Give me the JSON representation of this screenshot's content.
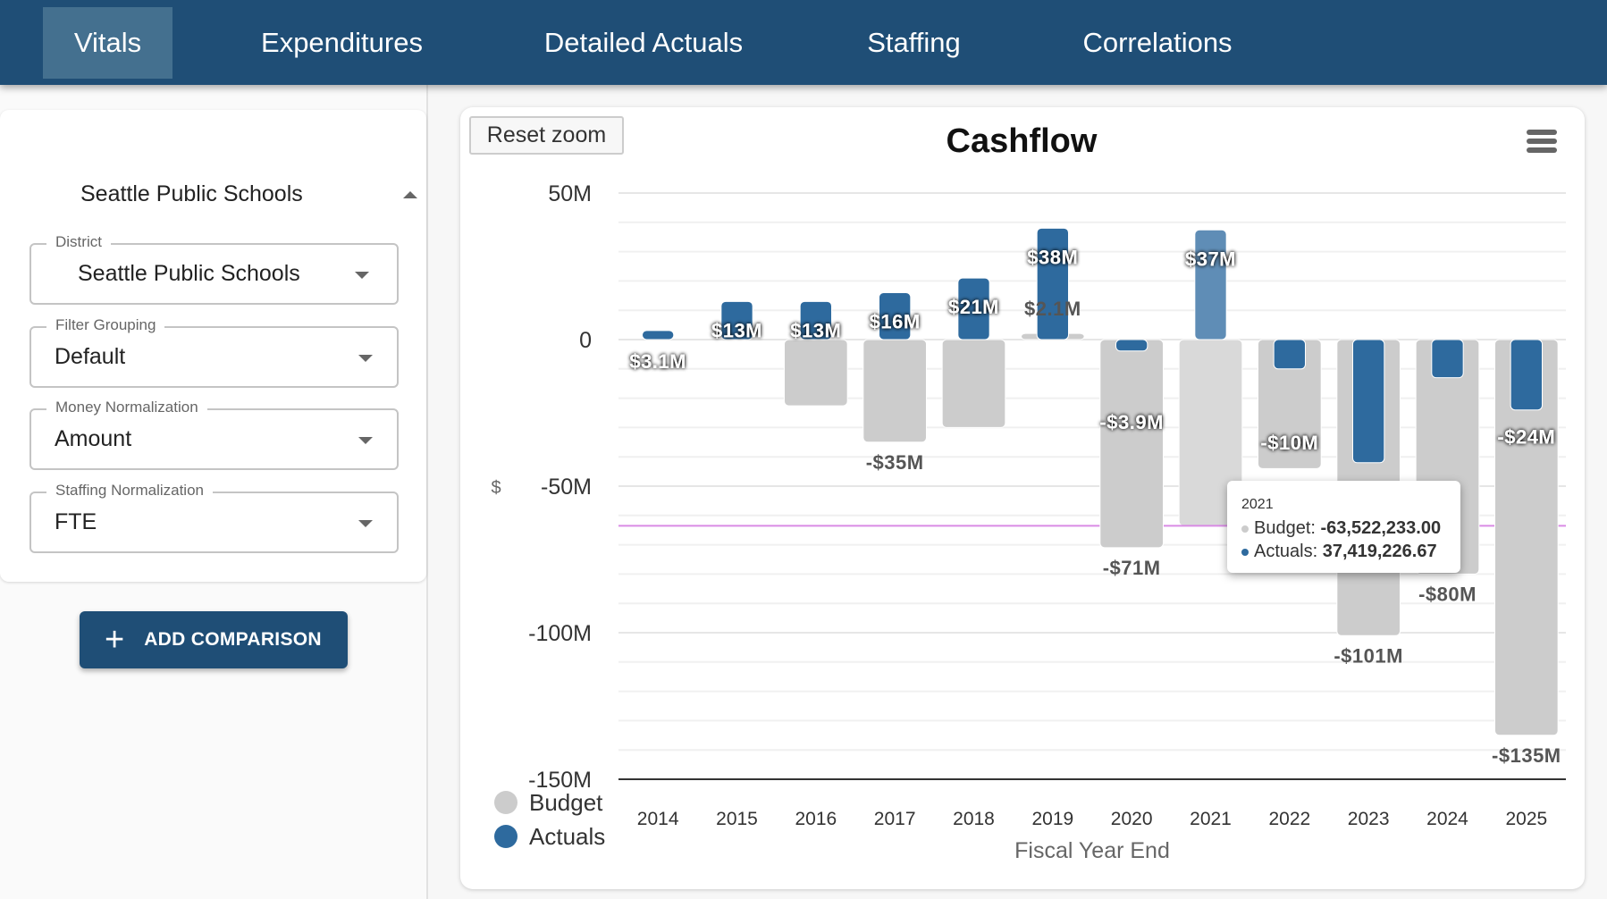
{
  "nav": {
    "tabs": [
      {
        "label": "Vitals",
        "active": true
      },
      {
        "label": "Expenditures",
        "active": false
      },
      {
        "label": "Detailed Actuals",
        "active": false
      },
      {
        "label": "Staffing",
        "active": false
      },
      {
        "label": "Correlations",
        "active": false
      }
    ]
  },
  "sidebar": {
    "card_title": "Seattle Public Schools",
    "fields": [
      {
        "label": "District",
        "value": "Seattle Public Schools"
      },
      {
        "label": "Filter Grouping",
        "value": "Default"
      },
      {
        "label": "Money Normalization",
        "value": "Amount"
      },
      {
        "label": "Staffing Normalization",
        "value": "FTE"
      }
    ],
    "add_button_icon": "+",
    "add_button_label": "ADD COMPARISON"
  },
  "chart_toolbar": {
    "reset_zoom_label": "Reset zoom",
    "menu_icon": "hamburger-menu-icon"
  },
  "tooltip": {
    "title": "2021",
    "budget_label": "Budget: ",
    "budget_value": "-63,522,233.00",
    "actuals_label": "Actuals: ",
    "actuals_value": "37,419,226.67"
  },
  "chart_data": {
    "type": "bar",
    "title": "Cashflow",
    "xlabel": "Fiscal Year End",
    "ylabel": "$",
    "ylim": [
      -150000000,
      50000000
    ],
    "yticks": [
      50000000,
      0,
      -50000000,
      -100000000,
      -150000000
    ],
    "ytick_labels": [
      "50M",
      "0",
      "-50M",
      "-100M",
      "-150M"
    ],
    "grid": true,
    "legend_position": "bottom-left",
    "categories": [
      "2014",
      "2015",
      "2016",
      "2017",
      "2018",
      "2019",
      "2020",
      "2021",
      "2022",
      "2023",
      "2024",
      "2025"
    ],
    "series": [
      {
        "name": "Budget",
        "color": "#cccccc",
        "values": [
          null,
          null,
          -22600000,
          -35000000,
          -30000000,
          2100000,
          -71000000,
          -63522233,
          -44000000,
          -101000000,
          -80000000,
          -135000000
        ],
        "labels": [
          "",
          "",
          "",
          "-$35M",
          "",
          "$2.1M",
          "-$71M",
          "",
          "",
          "-$101M",
          "-$80M",
          "-$135M"
        ]
      },
      {
        "name": "Actuals",
        "color": "#2e6a9e",
        "values": [
          3100000,
          13000000,
          13000000,
          16000000,
          21000000,
          38000000,
          -3900000,
          37419226.67,
          -10000000,
          -42000000,
          -13000000,
          -24000000
        ],
        "labels": [
          "$3.1M",
          "$13M",
          "$13M",
          "$16M",
          "$21M",
          "$38M",
          "-$3.9M",
          "$37M",
          "-$10M",
          "",
          "",
          "-$24M"
        ]
      }
    ],
    "highlighted_category": "2021",
    "crosshair_value": -63522233,
    "crosshair_color": "#d98be5"
  }
}
